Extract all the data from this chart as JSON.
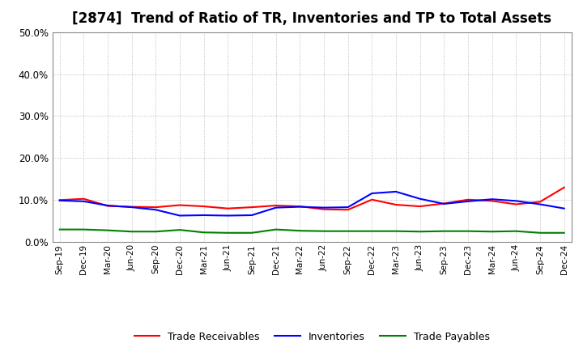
{
  "title": "[2874]  Trend of Ratio of TR, Inventories and TP to Total Assets",
  "x_labels": [
    "Sep-19",
    "Dec-19",
    "Mar-20",
    "Jun-20",
    "Sep-20",
    "Dec-20",
    "Mar-21",
    "Jun-21",
    "Sep-21",
    "Dec-21",
    "Mar-22",
    "Jun-22",
    "Sep-22",
    "Dec-22",
    "Mar-23",
    "Jun-23",
    "Sep-23",
    "Dec-23",
    "Mar-24",
    "Jun-24",
    "Sep-24",
    "Dec-24"
  ],
  "trade_receivables": [
    0.1,
    0.103,
    0.086,
    0.084,
    0.083,
    0.088,
    0.085,
    0.08,
    0.083,
    0.087,
    0.085,
    0.078,
    0.077,
    0.101,
    0.089,
    0.085,
    0.092,
    0.101,
    0.098,
    0.09,
    0.096,
    0.13
  ],
  "inventories": [
    0.099,
    0.097,
    0.087,
    0.083,
    0.077,
    0.063,
    0.064,
    0.063,
    0.064,
    0.082,
    0.084,
    0.082,
    0.083,
    0.116,
    0.12,
    0.103,
    0.091,
    0.097,
    0.102,
    0.098,
    0.09,
    0.08
  ],
  "trade_payables": [
    0.03,
    0.03,
    0.028,
    0.025,
    0.025,
    0.029,
    0.023,
    0.022,
    0.022,
    0.03,
    0.027,
    0.026,
    0.026,
    0.026,
    0.026,
    0.025,
    0.026,
    0.026,
    0.025,
    0.026,
    0.022,
    0.022
  ],
  "tr_color": "#FF0000",
  "inv_color": "#0000FF",
  "tp_color": "#008000",
  "ylim": [
    0.0,
    0.5
  ],
  "yticks": [
    0.0,
    0.1,
    0.2,
    0.3,
    0.4,
    0.5
  ],
  "background_color": "#FFFFFF",
  "grid_color": "#999999",
  "title_fontsize": 12,
  "legend_labels": [
    "Trade Receivables",
    "Inventories",
    "Trade Payables"
  ]
}
